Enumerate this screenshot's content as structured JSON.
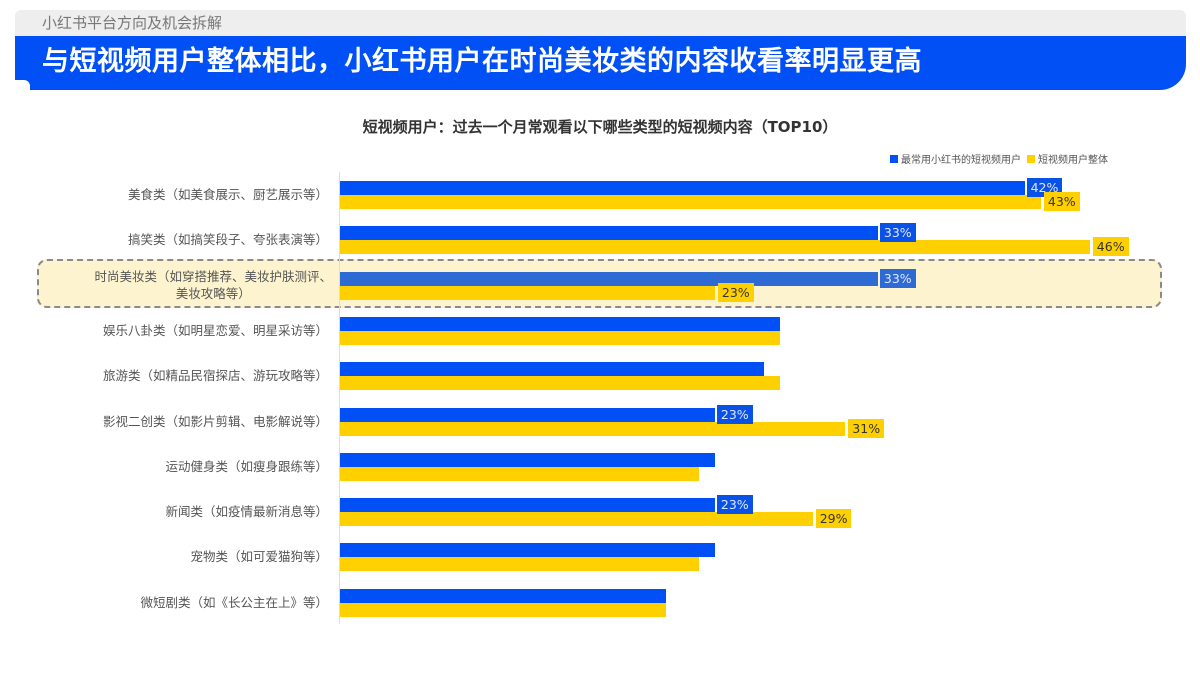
{
  "header": {
    "section": "小红书平台方向及机会拆解",
    "title": "与短视频用户整体相比，小红书用户在时尚美妆类的内容收看率明显更高"
  },
  "colors": {
    "blue": "#0050f5",
    "yellow": "#ffd000",
    "highlight": "#fdf4cf"
  },
  "chart_data": {
    "type": "bar",
    "orientation": "horizontal",
    "title": "短视频用户：过去一个月常观看以下哪些类型的短视频内容（TOP10）",
    "xlabel": "",
    "ylabel": "",
    "legend_position": "top-right",
    "grid": false,
    "unit": "%",
    "categories": [
      "美食类（如美食展示、厨艺展示等）",
      "搞笑类（如搞笑段子、夸张表演等）",
      "时尚美妆类（如穿搭推荐、美妆护肤测评、美妆攻略等）",
      "娱乐八卦类（如明星恋爱、明星采访等）",
      "旅游类（如精品民宿探店、游玩攻略等）",
      "影视二创类（如影片剪辑、电影解说等）",
      "运动健身类（如瘦身跟练等）",
      "新闻类（如疫情最新消息等）",
      "宠物类（如可爱猫狗等）",
      "微短剧类（如《长公主在上》等）"
    ],
    "series": [
      {
        "name": "最常用小红书的短视频用户",
        "color": "#0050f5",
        "values": [
          42,
          33,
          33,
          27,
          26,
          23,
          23,
          23,
          23,
          20
        ],
        "labeled": [
          true,
          true,
          true,
          false,
          false,
          true,
          false,
          true,
          false,
          false
        ]
      },
      {
        "name": "短视频用户整体",
        "color": "#ffd000",
        "values": [
          43,
          46,
          23,
          27,
          27,
          31,
          22,
          29,
          22,
          20
        ],
        "labeled": [
          true,
          true,
          true,
          false,
          false,
          true,
          false,
          true,
          false,
          false
        ]
      }
    ],
    "highlighted_category": "时尚美妆类（如穿搭推荐、美妆护肤测评、美妆攻略等）",
    "xlim": [
      0,
      52
    ]
  },
  "rows": [
    {
      "label": "美食类（如美食展示、厨艺展示等）",
      "blue": 42,
      "yellow": 43,
      "blue_label": "42%",
      "yellow_label": "43%"
    },
    {
      "label": "搞笑类（如搞笑段子、夸张表演等）",
      "blue": 33,
      "yellow": 46,
      "blue_label": "33%",
      "yellow_label": "46%"
    },
    {
      "label": "时尚美妆类（如穿搭推荐、美妆护肤测评、",
      "label2": "美妆攻略等）",
      "blue": 33,
      "yellow": 23,
      "blue_label": "33%",
      "yellow_label": "23%"
    },
    {
      "label": "娱乐八卦类（如明星恋爱、明星采访等）",
      "blue": 27,
      "yellow": 27
    },
    {
      "label": "旅游类（如精品民宿探店、游玩攻略等）",
      "blue": 26,
      "yellow": 27
    },
    {
      "label": "影视二创类（如影片剪辑、电影解说等）",
      "blue": 23,
      "yellow": 31,
      "blue_label": "23%",
      "yellow_label": "31%"
    },
    {
      "label": "运动健身类（如瘦身跟练等）",
      "blue": 23,
      "yellow": 22
    },
    {
      "label": "新闻类（如疫情最新消息等）",
      "blue": 23,
      "yellow": 29,
      "blue_label": "23%",
      "yellow_label": "29%"
    },
    {
      "label": "宠物类（如可爱猫狗等）",
      "blue": 23,
      "yellow": 22
    },
    {
      "label": "微短剧类（如《长公主在上》等）",
      "blue": 20,
      "yellow": 20
    }
  ],
  "legend": {
    "series1": "最常用小红书的短视频用户",
    "series2": "短视频用户整体"
  }
}
